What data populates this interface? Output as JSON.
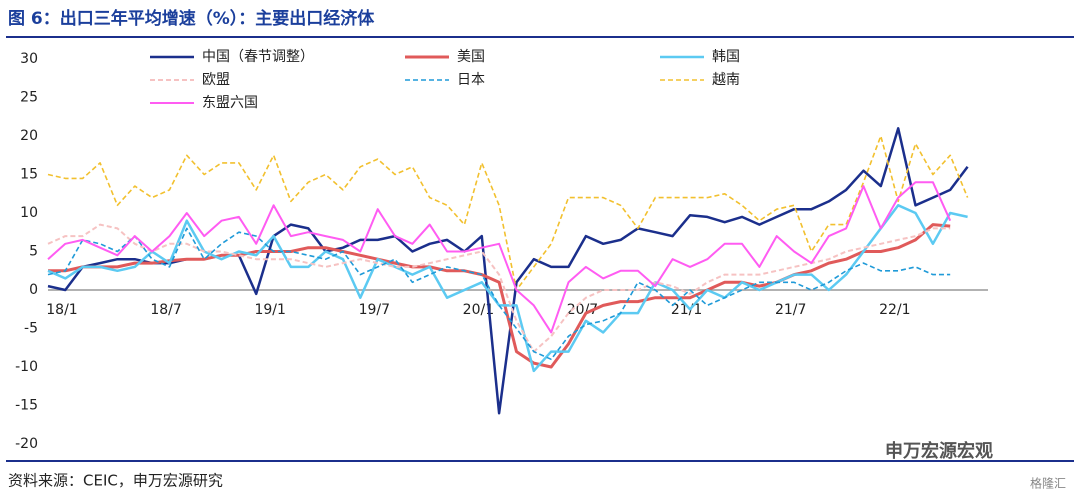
{
  "chart_data": {
    "type": "line",
    "title": "图 6：出口三年平均增速（%）：主要出口经济体",
    "source": "资料来源：CEIC，申万宏源研究",
    "watermark": "申万宏源宏观",
    "watermark2": "格隆汇",
    "categories": [
      "18/1",
      null,
      null,
      null,
      null,
      null,
      "18/7",
      null,
      null,
      null,
      null,
      null,
      "19/1",
      null,
      null,
      null,
      null,
      null,
      "19/7",
      null,
      null,
      null,
      null,
      null,
      "20/1",
      null,
      null,
      null,
      null,
      null,
      "20/7",
      null,
      null,
      null,
      null,
      null,
      "21/1",
      null,
      null,
      null,
      null,
      null,
      "21/7",
      null,
      null,
      null,
      null,
      null,
      "22/1",
      null,
      null,
      null,
      null,
      null
    ],
    "ylim": [
      -20,
      30
    ],
    "yticks": [
      -20,
      -15,
      -10,
      -5,
      0,
      5,
      10,
      15,
      20,
      25,
      30
    ],
    "series": [
      {
        "name": "中国（春节调整）",
        "color": "#1b2f8c",
        "width": 2.5,
        "dashed": false,
        "values": [
          0.5,
          0,
          3,
          3.5,
          4,
          4,
          3.5,
          3.5,
          4,
          4,
          4.5,
          4.5,
          -0.5,
          7,
          8.5,
          8,
          5,
          5.5,
          6.5,
          6.5,
          7,
          5,
          6,
          6.5,
          5,
          7,
          -16,
          1,
          4,
          3,
          3,
          7,
          6,
          6.5,
          8,
          7.5,
          7,
          9.7,
          9.5,
          8.8,
          9.5,
          8.5,
          9.5,
          10.5,
          10.5,
          11.5,
          13,
          15.5,
          13.5,
          21,
          11,
          12,
          13,
          16
        ]
      },
      {
        "name": "美国",
        "color": "#e05a5a",
        "width": 3,
        "dashed": false,
        "values": [
          2.5,
          2.5,
          3,
          3,
          3,
          3.5,
          3.5,
          3.8,
          4,
          4,
          4.5,
          4.5,
          5,
          5,
          5,
          5.5,
          5.5,
          5,
          4.5,
          4,
          3.5,
          3,
          3,
          2.5,
          2.5,
          2,
          1,
          -8,
          -9.5,
          -10,
          -7,
          -3,
          -2,
          -1.5,
          -1.5,
          -1,
          -1,
          -1,
          0,
          1,
          1,
          0.5,
          1,
          2,
          2.5,
          3.5,
          4,
          5,
          5,
          5.5,
          6.5,
          8.5,
          8.3,
          null
        ]
      },
      {
        "name": "韩国",
        "color": "#5ccaf2",
        "width": 2.5,
        "dashed": false,
        "values": [
          2.5,
          1.5,
          3,
          3,
          2.5,
          3,
          5,
          3.5,
          9,
          5,
          4,
          5,
          4.5,
          7,
          3,
          3,
          5,
          4,
          -1,
          4,
          3,
          2,
          3,
          -1,
          0,
          1,
          -2,
          -2,
          -10.5,
          -8,
          -8,
          -4,
          -5.5,
          -3,
          -3,
          1,
          0,
          -2.5,
          0,
          -1,
          1,
          0,
          1,
          2,
          2,
          0,
          2,
          5,
          8,
          11,
          10,
          6,
          10,
          9.5
        ]
      },
      {
        "name": "欧盟",
        "color": "#f6c2c2",
        "width": 2,
        "dashed": true,
        "values": [
          6,
          7,
          7,
          8.5,
          8,
          6,
          5,
          6,
          6,
          5,
          5,
          4.5,
          4,
          4,
          4,
          3.5,
          3,
          3.5,
          4,
          3.5,
          3,
          3,
          3.5,
          4,
          4.5,
          5,
          2,
          -4,
          -8,
          -6,
          -3,
          -1,
          0,
          0,
          0,
          1,
          0.5,
          -0.5,
          1,
          2,
          2,
          2,
          2.5,
          3,
          3.5,
          4,
          5,
          5.5,
          6,
          6.5,
          7,
          8,
          8,
          null
        ]
      },
      {
        "name": "日本",
        "color": "#1f9ad8",
        "width": 1.6,
        "dashed": true,
        "values": [
          2,
          2.5,
          6.5,
          6,
          5,
          7,
          4,
          3,
          8,
          4,
          6,
          7.5,
          7,
          5,
          5,
          4.5,
          4,
          5,
          2,
          3,
          4,
          1,
          2,
          3,
          2.5,
          2,
          -2,
          -5,
          -8,
          -9,
          -6,
          -4.5,
          -4,
          -3,
          1,
          0,
          -2,
          0,
          -2,
          -1,
          0,
          1,
          1,
          1,
          0,
          1,
          2.5,
          3.5,
          2.5,
          2.5,
          3,
          2,
          2,
          null
        ]
      },
      {
        "name": "越南",
        "color": "#f2c02e",
        "width": 1.6,
        "dashed": true,
        "values": [
          15,
          14.5,
          14.5,
          16.5,
          11,
          13.5,
          12,
          13,
          17.5,
          15,
          16.5,
          16.5,
          13,
          17.5,
          11.5,
          14,
          15,
          13,
          16,
          17,
          15,
          16,
          12,
          11,
          8.5,
          16.5,
          11,
          0,
          3,
          6,
          12,
          12,
          12,
          11,
          8,
          12,
          12,
          12,
          12,
          12.5,
          11,
          9,
          10.5,
          11,
          5,
          8.5,
          8.5,
          14,
          20,
          11.5,
          19,
          15,
          17.5,
          12
        ]
      },
      {
        "name": "东盟六国",
        "color": "#ff5cf2",
        "width": 2,
        "dashed": false,
        "values": [
          4,
          6,
          6.5,
          5.5,
          4.5,
          7,
          5,
          7,
          10,
          7,
          9,
          9.5,
          6,
          11,
          7,
          7.5,
          7,
          6.5,
          5,
          10.5,
          7,
          6,
          8.5,
          5,
          5,
          5.5,
          6,
          0,
          -2,
          -5.5,
          1,
          3,
          1.5,
          2.5,
          2.5,
          0.5,
          4,
          3,
          4,
          6,
          6,
          3,
          7,
          5,
          3.5,
          7,
          8,
          13.5,
          8,
          12,
          14,
          14,
          9,
          null
        ]
      }
    ]
  }
}
